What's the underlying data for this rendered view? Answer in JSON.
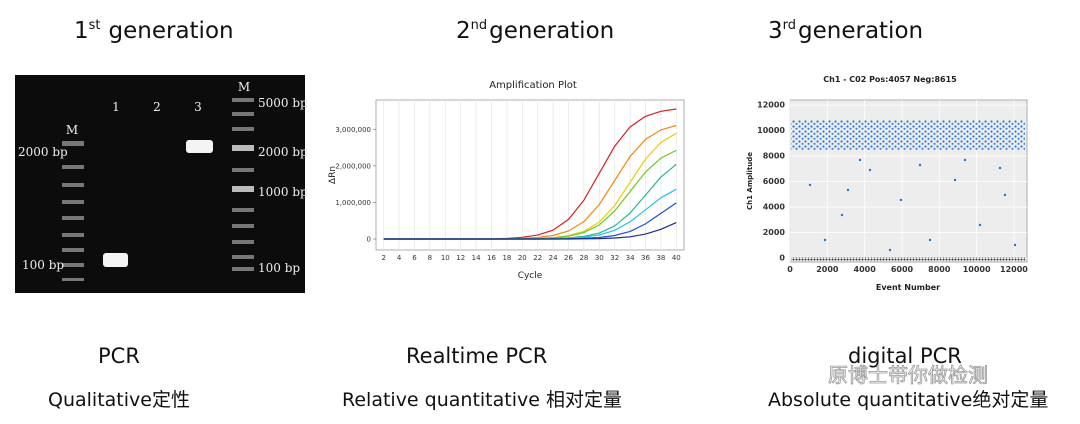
{
  "panels": [
    {
      "heading": {
        "ordinal": "1",
        "suffix": "st",
        "word": "generation"
      },
      "name": "PCR",
      "description": "Qualitative定性",
      "gel": {
        "lanes": [
          "M",
          "1",
          "2",
          "3",
          "M"
        ],
        "left_sizes": [
          "2000 bp",
          "100 bp"
        ],
        "right_sizes": [
          "5000 bp",
          "2000 bp",
          "1000 bp",
          "100 bp"
        ]
      }
    },
    {
      "heading": {
        "ordinal": "2",
        "suffix": "nd",
        "word": "generation"
      },
      "name": "Realtime PCR",
      "description": "Relative quantitative 相对定量"
    },
    {
      "heading": {
        "ordinal": "3",
        "suffix": "rd",
        "word": "generation"
      },
      "name": "digital PCR",
      "description": "Absolute quantitative绝对定量"
    }
  ],
  "watermark": "原博士带你做检测",
  "chart_data": [
    {
      "type": "line",
      "title": "Amplification Plot",
      "x_label": "Cycle",
      "y_label": "ΔRn",
      "x": [
        2,
        4,
        6,
        8,
        10,
        12,
        14,
        16,
        18,
        20,
        22,
        24,
        26,
        28,
        30,
        32,
        34,
        36,
        38,
        40
      ],
      "series": [
        {
          "color": "#d42020",
          "values": [
            0,
            0,
            0,
            0,
            0,
            0,
            0,
            0,
            18000,
            47000,
            108000,
            245000,
            536000,
            1062000,
            1800000,
            2538000,
            3064000,
            3355000,
            3492000,
            3553000
          ]
        },
        {
          "color": "#f08a10",
          "values": [
            0,
            0,
            0,
            0,
            0,
            0,
            0,
            0,
            0,
            16000,
            42000,
            96000,
            218000,
            477000,
            944000,
            1600000,
            2256000,
            2723000,
            2982000,
            3104000
          ]
        },
        {
          "color": "#e8d000",
          "values": [
            0,
            0,
            0,
            0,
            0,
            0,
            0,
            0,
            0,
            0,
            16000,
            40000,
            93000,
            211000,
            462000,
            915000,
            1550000,
            2186000,
            2638000,
            2889000
          ]
        },
        {
          "color": "#6cc820",
          "values": [
            0,
            0,
            0,
            0,
            0,
            0,
            0,
            0,
            0,
            0,
            13000,
            34000,
            78000,
            177000,
            387000,
            767000,
            1300000,
            1833000,
            2213000,
            2423000
          ]
        },
        {
          "color": "#20b890",
          "values": [
            0,
            0,
            0,
            0,
            0,
            0,
            0,
            0,
            0,
            0,
            0,
            12000,
            31000,
            72000,
            163000,
            358000,
            708000,
            1200000,
            1692000,
            2042000
          ]
        },
        {
          "color": "#20c8e0",
          "values": [
            0,
            0,
            0,
            0,
            0,
            0,
            0,
            0,
            0,
            0,
            0,
            8000,
            21000,
            48000,
            109000,
            238000,
            472000,
            800000,
            1128000,
            1362000
          ]
        },
        {
          "color": "#2050d8",
          "values": [
            0,
            0,
            0,
            0,
            0,
            0,
            0,
            0,
            0,
            0,
            0,
            0,
            7000,
            18000,
            42000,
            95000,
            209000,
            413000,
            700000,
            987000
          ]
        },
        {
          "color": "#202890",
          "values": [
            0,
            0,
            0,
            0,
            0,
            0,
            0,
            0,
            0,
            0,
            0,
            0,
            0,
            5000,
            12000,
            27000,
            61000,
            134000,
            266000,
            450000
          ]
        }
      ],
      "xlim": [
        1,
        41
      ],
      "ylim": [
        -300000,
        3800000
      ],
      "xticks": [
        2,
        4,
        6,
        8,
        10,
        12,
        14,
        16,
        18,
        20,
        22,
        24,
        26,
        28,
        30,
        32,
        34,
        36,
        38,
        40
      ],
      "yticks": [
        0,
        {
          "value": 1000000,
          "label": "1,000,000"
        },
        {
          "value": 2000000,
          "label": "2,000,000"
        },
        {
          "value": 3000000,
          "label": "3,000,000"
        }
      ],
      "grid": true
    },
    {
      "type": "scatter",
      "title": "Ch1 - C02 Pos:4057 Neg:8615",
      "x_label": "Event Number",
      "y_label": "Ch1 Amplitude",
      "xlim": [
        0,
        12700
      ],
      "ylim": [
        -300,
        12400
      ],
      "xticks": [
        0,
        2000,
        4000,
        6000,
        8000,
        10000,
        12000
      ],
      "yticks": [
        0,
        2000,
        4000,
        6000,
        8000,
        10000,
        12000
      ],
      "grid": true
    }
  ]
}
